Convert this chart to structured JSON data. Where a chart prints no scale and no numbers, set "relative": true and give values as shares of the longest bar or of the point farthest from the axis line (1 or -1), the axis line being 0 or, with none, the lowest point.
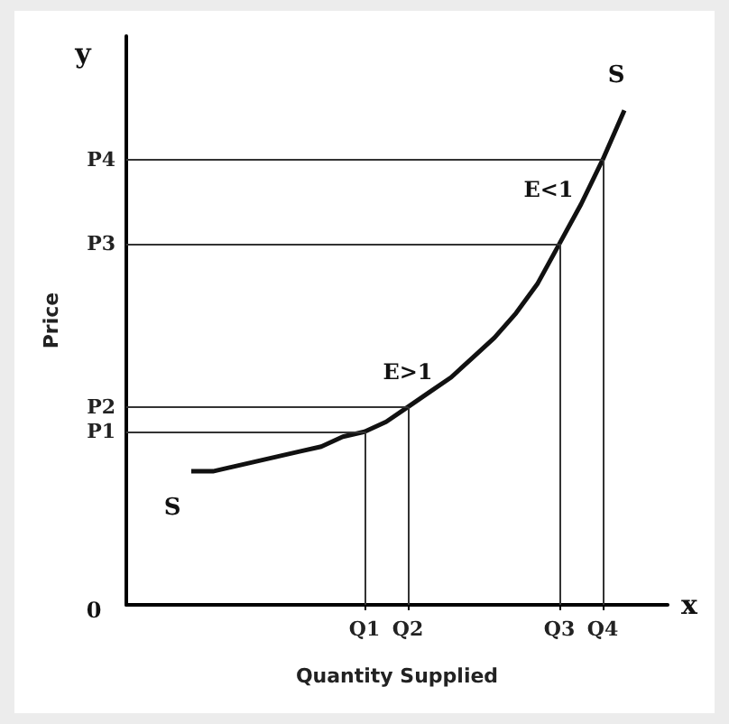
{
  "chart_data": {
    "type": "line",
    "xlabel": "Quantity Supplied",
    "ylabel": "Price",
    "relative": true,
    "annotations": [
      "y",
      "x",
      "0",
      "S",
      "S",
      "E>1",
      "E<1"
    ],
    "categories": [
      null,
      null,
      null,
      null,
      null,
      null,
      null,
      null,
      null,
      null,
      null,
      "Q1",
      null,
      "Q2",
      null,
      null,
      null,
      null,
      null,
      null,
      "Q3",
      null,
      "Q4",
      null,
      null,
      null
    ],
    "line_style": "solid",
    "series": [
      {
        "color": "#111111",
        "values": [
          null,
          null,
          null,
          0.27,
          0.27,
          0.28,
          0.29,
          0.3,
          0.31,
          0.32,
          0.34,
          0.35,
          0.37,
          0.4,
          0.43,
          0.46,
          0.5,
          0.54,
          0.59,
          0.65,
          0.73,
          0.81,
          0.9,
          1,
          null,
          null
        ]
      }
    ],
    "ref_lines": [
      {
        "axis": "y",
        "value": 0.35,
        "label": "P1",
        "color": "#333333"
      },
      {
        "axis": "y",
        "value": 0.4,
        "label": "P2",
        "color": "#333333"
      },
      {
        "axis": "y",
        "value": 0.73,
        "label": "P3",
        "color": "#333333"
      },
      {
        "axis": "y",
        "value": 0.9,
        "label": "P4",
        "color": "#333333"
      },
      {
        "axis": "x",
        "value": "Q1",
        "color": "#333333"
      },
      {
        "axis": "x",
        "value": "Q2",
        "color": "#333333"
      },
      {
        "axis": "x",
        "value": "Q3",
        "color": "#333333"
      },
      {
        "axis": "x",
        "value": "Q4",
        "color": "#333333"
      }
    ]
  }
}
